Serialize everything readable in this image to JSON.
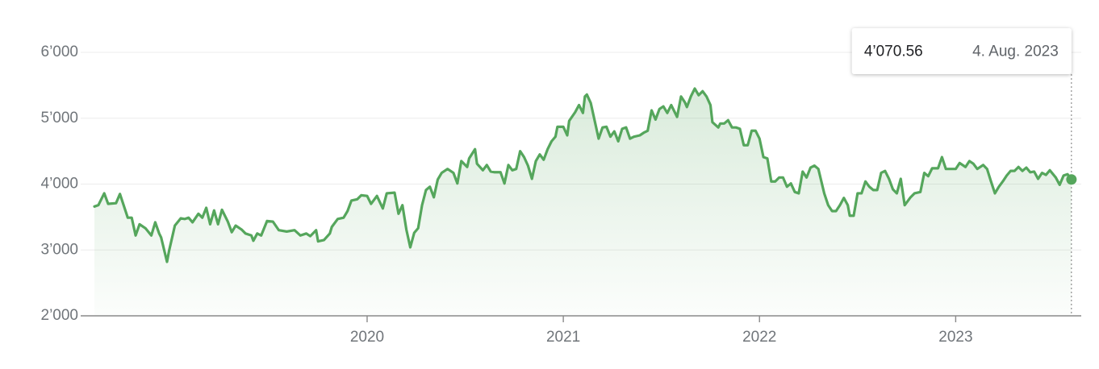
{
  "chart_data": {
    "type": "line",
    "color": "#55a65c",
    "grid": true,
    "xlim": [
      2018.54,
      2023.64
    ],
    "xticks": [
      2020,
      2021,
      2022,
      2023
    ],
    "ylim": [
      2000,
      6000
    ],
    "yticks": [
      {
        "value": 2000,
        "label": "2’000"
      },
      {
        "value": 3000,
        "label": "3’000"
      },
      {
        "value": 4000,
        "label": "4’000"
      },
      {
        "value": 5000,
        "label": "5’000"
      },
      {
        "value": 6000,
        "label": "6’000"
      }
    ],
    "tooltip": {
      "value": "4’070.56",
      "date": "4. Aug. 2023"
    },
    "x": [
      2018.61,
      2018.63,
      2018.66,
      2018.68,
      2018.72,
      2018.74,
      2018.78,
      2018.8,
      2018.82,
      2018.84,
      2018.87,
      2018.9,
      2018.92,
      2018.94,
      2018.95,
      2018.98,
      2018.99,
      2019.02,
      2019.05,
      2019.07,
      2019.09,
      2019.11,
      2019.14,
      2019.16,
      2019.18,
      2019.2,
      2019.22,
      2019.24,
      2019.26,
      2019.29,
      2019.31,
      2019.33,
      2019.36,
      2019.38,
      2019.41,
      2019.42,
      2019.44,
      2019.46,
      2019.49,
      2019.52,
      2019.55,
      2019.59,
      2019.63,
      2019.66,
      2019.69,
      2019.71,
      2019.74,
      2019.75,
      2019.78,
      2019.81,
      2019.82,
      2019.85,
      2019.88,
      2019.9,
      2019.92,
      2019.95,
      2019.97,
      2020.0,
      2020.02,
      2020.05,
      2020.08,
      2020.1,
      2020.14,
      2020.16,
      2020.18,
      2020.2,
      2020.22,
      2020.24,
      2020.26,
      2020.28,
      2020.3,
      2020.32,
      2020.34,
      2020.36,
      2020.38,
      2020.41,
      2020.44,
      2020.46,
      2020.48,
      2020.51,
      2020.52,
      2020.55,
      2020.56,
      2020.59,
      2020.61,
      2020.63,
      2020.65,
      2020.68,
      2020.7,
      2020.72,
      2020.74,
      2020.76,
      2020.78,
      2020.8,
      2020.82,
      2020.84,
      2020.86,
      2020.88,
      2020.9,
      2020.92,
      2020.94,
      2020.96,
      2020.97,
      2021.0,
      2021.02,
      2021.03,
      2021.06,
      2021.08,
      2021.1,
      2021.11,
      2021.12,
      2021.14,
      2021.16,
      2021.18,
      2021.2,
      2021.22,
      2021.24,
      2021.26,
      2021.28,
      2021.3,
      2021.32,
      2021.34,
      2021.36,
      2021.39,
      2021.41,
      2021.43,
      2021.45,
      2021.47,
      2021.49,
      2021.51,
      2021.53,
      2021.55,
      2021.58,
      2021.6,
      2021.62,
      2021.63,
      2021.65,
      2021.67,
      2021.69,
      2021.71,
      2021.73,
      2021.75,
      2021.76,
      2021.79,
      2021.8,
      2021.82,
      2021.84,
      2021.86,
      2021.88,
      2021.9,
      2021.92,
      2021.94,
      2021.96,
      2021.98,
      2022.0,
      2022.02,
      2022.04,
      2022.06,
      2022.08,
      2022.1,
      2022.12,
      2022.14,
      2022.16,
      2022.18,
      2022.2,
      2022.22,
      2022.24,
      2022.26,
      2022.28,
      2022.3,
      2022.33,
      2022.35,
      2022.37,
      2022.39,
      2022.41,
      2022.43,
      2022.45,
      2022.46,
      2022.48,
      2022.5,
      2022.52,
      2022.54,
      2022.56,
      2022.58,
      2022.6,
      2022.62,
      2022.64,
      2022.66,
      2022.68,
      2022.7,
      2022.72,
      2022.74,
      2022.77,
      2022.79,
      2022.82,
      2022.84,
      2022.86,
      2022.88,
      2022.91,
      2022.93,
      2022.95,
      2022.97,
      2023.0,
      2023.02,
      2023.05,
      2023.07,
      2023.09,
      2023.11,
      2023.14,
      2023.16,
      2023.18,
      2023.2,
      2023.22,
      2023.24,
      2023.26,
      2023.28,
      2023.3,
      2023.32,
      2023.34,
      2023.36,
      2023.38,
      2023.4,
      2023.42,
      2023.44,
      2023.46,
      2023.48,
      2023.51,
      2023.53,
      2023.55,
      2023.57,
      2023.59
    ],
    "values": [
      3660,
      3680,
      3860,
      3700,
      3710,
      3850,
      3490,
      3490,
      3220,
      3390,
      3330,
      3220,
      3420,
      3250,
      3190,
      2820,
      2980,
      3370,
      3480,
      3470,
      3490,
      3420,
      3550,
      3490,
      3640,
      3390,
      3600,
      3390,
      3610,
      3430,
      3270,
      3370,
      3310,
      3250,
      3220,
      3140,
      3250,
      3220,
      3440,
      3430,
      3300,
      3280,
      3300,
      3220,
      3250,
      3210,
      3300,
      3130,
      3150,
      3250,
      3350,
      3470,
      3490,
      3590,
      3750,
      3770,
      3830,
      3820,
      3700,
      3820,
      3630,
      3860,
      3870,
      3550,
      3680,
      3310,
      3040,
      3260,
      3330,
      3680,
      3910,
      3960,
      3800,
      4070,
      4170,
      4230,
      4170,
      4010,
      4350,
      4260,
      4390,
      4530,
      4310,
      4210,
      4290,
      4190,
      4180,
      4180,
      4010,
      4290,
      4210,
      4230,
      4500,
      4410,
      4280,
      4080,
      4350,
      4450,
      4370,
      4530,
      4650,
      4720,
      4870,
      4870,
      4740,
      4960,
      5090,
      5200,
      5080,
      5330,
      5360,
      5230,
      4960,
      4690,
      4860,
      4870,
      4720,
      4800,
      4650,
      4840,
      4860,
      4690,
      4720,
      4740,
      4780,
      4810,
      5120,
      4980,
      5140,
      5180,
      5080,
      5200,
      5020,
      5330,
      5240,
      5170,
      5330,
      5450,
      5350,
      5410,
      5330,
      5200,
      4940,
      4860,
      4920,
      4920,
      4970,
      4860,
      4860,
      4840,
      4590,
      4590,
      4810,
      4810,
      4690,
      4410,
      4390,
      4040,
      4040,
      4100,
      4100,
      3960,
      4010,
      3880,
      3860,
      4190,
      4100,
      4250,
      4280,
      4230,
      3860,
      3680,
      3590,
      3590,
      3680,
      3790,
      3680,
      3520,
      3520,
      3860,
      3860,
      4040,
      3960,
      3910,
      3910,
      4170,
      4200,
      4080,
      3920,
      3860,
      4080,
      3680,
      3800,
      3860,
      3880,
      4170,
      4120,
      4240,
      4240,
      4410,
      4230,
      4230,
      4230,
      4320,
      4260,
      4350,
      4310,
      4230,
      4290,
      4230,
      4040,
      3860,
      3960,
      4040,
      4130,
      4200,
      4200,
      4260,
      4200,
      4250,
      4180,
      4190,
      4080,
      4170,
      4140,
      4210,
      4100,
      3990,
      4130,
      4150,
      4070.56
    ]
  }
}
